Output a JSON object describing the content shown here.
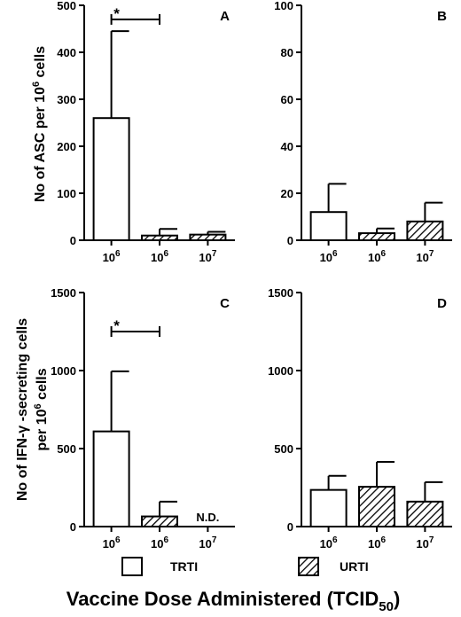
{
  "chart_data": [
    {
      "panel": "A",
      "type": "bar",
      "categories": [
        "10^6",
        "10^6",
        "10^7"
      ],
      "series": [
        {
          "values": [
            260,
            10,
            12
          ],
          "errors": [
            185,
            14,
            6
          ],
          "patterns": [
            "TRTI",
            "URTI",
            "URTI"
          ]
        }
      ],
      "ylim": [
        0,
        500
      ],
      "yticks": [
        0,
        100,
        200,
        300,
        400,
        500
      ],
      "ylabel": "No of ASC per 10^6 cells",
      "significance": [
        {
          "from": 0,
          "to": 1,
          "label": "*",
          "y": 470
        }
      ]
    },
    {
      "panel": "B",
      "type": "bar",
      "categories": [
        "10^6",
        "10^6",
        "10^7"
      ],
      "series": [
        {
          "values": [
            12,
            3,
            8
          ],
          "errors": [
            12,
            2,
            8
          ],
          "patterns": [
            "TRTI",
            "URTI",
            "URTI"
          ]
        }
      ],
      "ylim": [
        0,
        100
      ],
      "yticks": [
        0,
        20,
        40,
        60,
        80,
        100
      ]
    },
    {
      "panel": "C",
      "type": "bar",
      "categories": [
        "10^6",
        "10^6",
        "10^7"
      ],
      "series": [
        {
          "values": [
            610,
            65,
            null
          ],
          "errors": [
            385,
            95,
            null
          ],
          "patterns": [
            "TRTI",
            "URTI",
            "URTI"
          ]
        }
      ],
      "ylim": [
        0,
        1500
      ],
      "yticks": [
        0,
        500,
        1000,
        1500
      ],
      "ylabel": "No of IFN-γ -secreting cells per 10^6 cells",
      "annotations": [
        {
          "category": 2,
          "text": "N.D."
        }
      ],
      "significance": [
        {
          "from": 0,
          "to": 1,
          "label": "*",
          "y": 1250
        }
      ]
    },
    {
      "panel": "D",
      "type": "bar",
      "categories": [
        "10^6",
        "10^6",
        "10^7"
      ],
      "series": [
        {
          "values": [
            235,
            255,
            160
          ],
          "errors": [
            90,
            160,
            125
          ],
          "patterns": [
            "TRTI",
            "URTI",
            "URTI"
          ]
        }
      ],
      "ylim": [
        0,
        1500
      ],
      "yticks": [
        0,
        500,
        1000,
        1500
      ]
    }
  ],
  "text": {
    "ylabel_top_prefix": "No of ASC per 10",
    "ylabel_top_sup": "6",
    "ylabel_top_suffix": " cells",
    "ylabel_bottom_line1": "No of IFN-γ -secreting cells",
    "ylabel_bottom_line2_prefix": "per 10",
    "ylabel_bottom_line2_sup": "6",
    "ylabel_bottom_line2_suffix": " cells",
    "tick_base": "10",
    "legend_trti": "TRTI",
    "legend_urti": "URTI",
    "xtitle_main": "Vaccine Dose Administered (TCID",
    "xtitle_sub": "50",
    "xtitle_end": ")",
    "panel_letters": [
      "A",
      "B",
      "C",
      "D"
    ],
    "nd": "N.D.",
    "star": "*"
  }
}
